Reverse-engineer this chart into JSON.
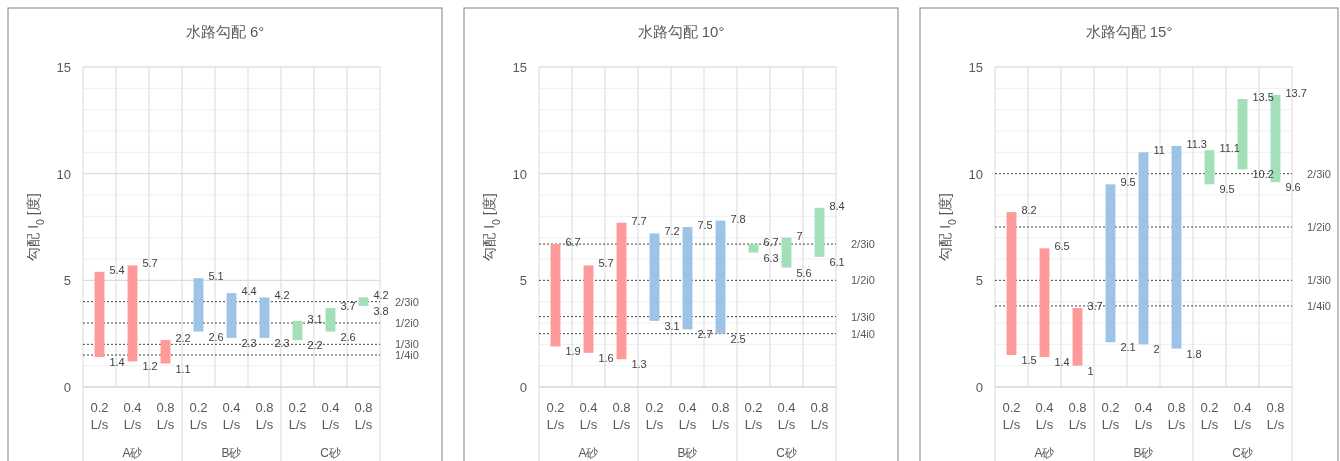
{
  "chart_data": [
    {
      "type": "bar",
      "title": "水路勾配 6°",
      "ylabel": "勾配 I$_{0}$ [度]",
      "categories": [
        "0.2 L/s",
        "0.4 L/s",
        "0.8 L/s",
        "0.2 L/s",
        "0.4 L/s",
        "0.8 L/s",
        "0.2 L/s",
        "0.4 L/s",
        "0.8 L/s"
      ],
      "base": [
        1.4,
        1.2,
        1.1,
        2.6,
        2.3,
        2.3,
        2.2,
        2.6,
        3.8
      ],
      "values": [
        4.0,
        4.5,
        1.1,
        2.5,
        2.1,
        1.9,
        0.9,
        1.1,
        0.4
      ],
      "colors": [
        "#ff9a9a",
        "#ff9a9a",
        "#ff9a9a",
        "#9dc3e6",
        "#9dc3e6",
        "#9dc3e6",
        "#a3dfb8",
        "#a3dfb8",
        "#a3dfb8"
      ],
      "ylim": [
        0,
        15
      ],
      "yticks": [
        0,
        5,
        10,
        15
      ],
      "grid": true,
      "ref_lines": [
        {
          "axis": "y",
          "value": 4,
          "label": "2/3i0",
          "line_style": "dotted"
        },
        {
          "axis": "y",
          "value": 3,
          "label": "1/2i0",
          "line_style": "dotted"
        },
        {
          "axis": "y",
          "value": 2,
          "label": "1/3i0",
          "line_style": "dotted"
        },
        {
          "axis": "y",
          "value": 1.5,
          "label": "1/4i0",
          "line_style": "dotted"
        }
      ],
      "annotations": [
        "A砂",
        "B砂",
        "C砂",
        "5.4",
        "1.4",
        "5.7",
        "1.2",
        "2.2",
        "1.1",
        "5.1",
        "2.6",
        "4.4",
        "2.3",
        "4.2",
        "2.3",
        "3.1",
        "2.2",
        "3.7",
        "2.6",
        "4.2",
        "3.8"
      ]
    },
    {
      "type": "bar",
      "title": "水路勾配 10°",
      "ylabel": "勾配 I$_{0}$ [度]",
      "categories": [
        "0.2 L/s",
        "0.4 L/s",
        "0.8 L/s",
        "0.2 L/s",
        "0.4 L/s",
        "0.8 L/s",
        "0.2 L/s",
        "0.4 L/s",
        "0.8 L/s"
      ],
      "base": [
        1.9,
        1.6,
        1.3,
        3.1,
        2.7,
        2.5,
        6.3,
        5.6,
        6.1
      ],
      "values": [
        4.8,
        4.1,
        6.4,
        4.1,
        4.8,
        5.3,
        0.4,
        1.4,
        2.3
      ],
      "colors": [
        "#ff9a9a",
        "#ff9a9a",
        "#ff9a9a",
        "#9dc3e6",
        "#9dc3e6",
        "#9dc3e6",
        "#a3dfb8",
        "#a3dfb8",
        "#a3dfb8"
      ],
      "ylim": [
        0,
        15
      ],
      "yticks": [
        0,
        5,
        10,
        15
      ],
      "grid": true,
      "ref_lines": [
        {
          "axis": "y",
          "value": 6.7,
          "label": "2/3i0",
          "line_style": "dotted"
        },
        {
          "axis": "y",
          "value": 5,
          "label": "1/2i0",
          "line_style": "dotted"
        },
        {
          "axis": "y",
          "value": 3.3,
          "label": "1/3i0",
          "line_style": "dotted"
        },
        {
          "axis": "y",
          "value": 2.5,
          "label": "1/4i0",
          "line_style": "dotted"
        }
      ],
      "annotations": [
        "A砂",
        "B砂",
        "C砂",
        "6.7",
        "1.9",
        "5.7",
        "1.6",
        "7.7",
        "1.3",
        "7.2",
        "3.1",
        "7.5",
        "2.7",
        "7.8",
        "2.5",
        "6.7",
        "6.3",
        "7",
        "5.6",
        "8.4",
        "6.1"
      ]
    },
    {
      "type": "bar",
      "title": "水路勾配 15°",
      "ylabel": "勾配 I$_{0}$ [度]",
      "categories": [
        "0.2 L/s",
        "0.4 L/s",
        "0.8 L/s",
        "0.2 L/s",
        "0.4 L/s",
        "0.8 L/s",
        "0.2 L/s",
        "0.4 L/s",
        "0.8 L/s"
      ],
      "base": [
        1.5,
        1.4,
        1,
        2.1,
        2,
        1.8,
        9.5,
        10.2,
        9.6
      ],
      "values": [
        6.7,
        5.1,
        2.7,
        7.4,
        9,
        9.5,
        1.6,
        3.3,
        4.1
      ],
      "colors": [
        "#ff9a9a",
        "#ff9a9a",
        "#ff9a9a",
        "#9dc3e6",
        "#9dc3e6",
        "#9dc3e6",
        "#a3dfb8",
        "#a3dfb8",
        "#a3dfb8"
      ],
      "ylim": [
        0,
        15
      ],
      "yticks": [
        0,
        5,
        10,
        15
      ],
      "grid": true,
      "ref_lines": [
        {
          "axis": "y",
          "value": 10,
          "label": "2/3i0",
          "line_style": "dotted"
        },
        {
          "axis": "y",
          "value": 7.5,
          "label": "1/2i0",
          "line_style": "dotted"
        },
        {
          "axis": "y",
          "value": 5,
          "label": "1/3i0",
          "line_style": "dotted"
        },
        {
          "axis": "y",
          "value": 3.8,
          "label": "1/4i0",
          "line_style": "dotted"
        }
      ],
      "annotations": [
        "A砂",
        "B砂",
        "C砂",
        "8.2",
        "1.5",
        "6.5",
        "1.4",
        "3.7",
        "1",
        "9.5",
        "2.1",
        "11",
        "2",
        "11.3",
        "1.8",
        "11.1",
        "9.5",
        "13.5",
        "10.2",
        "13.7",
        "9.6"
      ]
    }
  ]
}
